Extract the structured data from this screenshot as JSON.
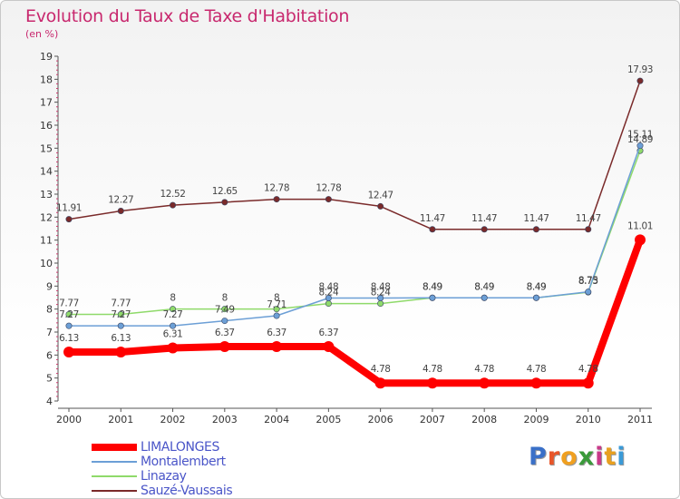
{
  "header": {
    "title": "Evolution du Taux de Taxe d'Habitation",
    "subtitle": "(en %)"
  },
  "logo": {
    "text": "Proxiti",
    "letter_colors": [
      "#3a70c8",
      "#e8562a",
      "#f0a020",
      "#3a9a3a",
      "#c83a8a",
      "#e8a020",
      "#3a9ad8"
    ]
  },
  "chart_data": {
    "type": "line",
    "x": [
      "2000",
      "2001",
      "2002",
      "2003",
      "2004",
      "2005",
      "2006",
      "2007",
      "2008",
      "2009",
      "2010",
      "2011"
    ],
    "ylim": [
      4,
      19
    ],
    "yticks": [
      4,
      5,
      6,
      7,
      8,
      9,
      10,
      11,
      12,
      13,
      14,
      15,
      16,
      17,
      18,
      19
    ],
    "grid": false,
    "legend_position": "bottom-left",
    "series": [
      {
        "name": "LIMALONGES",
        "color": "#ff0000",
        "width": 8,
        "values": [
          6.13,
          6.13,
          6.31,
          6.37,
          6.37,
          6.37,
          4.78,
          4.78,
          4.78,
          4.78,
          4.78,
          11.01
        ],
        "labels": [
          "6.13",
          "6.13",
          "6.31",
          "6.37",
          "6.37",
          "6.37",
          "4.78",
          "4.78",
          "4.78",
          "4.78",
          "4.78",
          "11.01"
        ]
      },
      {
        "name": "Montalembert",
        "color": "#6c9fd6",
        "width": 1.5,
        "values": [
          7.27,
          7.27,
          7.27,
          7.49,
          7.71,
          8.48,
          8.48,
          8.49,
          8.49,
          8.49,
          8.75,
          15.11
        ],
        "labels": [
          "7.27",
          "7.27",
          "7.27",
          "7.49",
          "7.71",
          "8.48",
          "8.48",
          "8.49",
          "8.49",
          "8.49",
          "8.75",
          "15.11"
        ]
      },
      {
        "name": "Linazay",
        "color": "#8fda6a",
        "width": 1.5,
        "values": [
          7.77,
          7.77,
          8,
          8,
          8,
          8.24,
          8.24,
          8.49,
          8.49,
          8.49,
          8.73,
          14.89
        ],
        "labels": [
          "7.77",
          "7.77",
          "8",
          "8",
          "8",
          "8.24",
          "8.24",
          "8.49",
          "8.49",
          "8.49",
          "8.73",
          "14.89"
        ]
      },
      {
        "name": "Sauzé-Vaussais",
        "color": "#7a2a2a",
        "width": 1.5,
        "values": [
          11.91,
          12.27,
          12.52,
          12.65,
          12.78,
          12.78,
          12.47,
          11.47,
          11.47,
          11.47,
          11.47,
          17.93
        ],
        "labels": [
          "11.91",
          "12.27",
          "12.52",
          "12.65",
          "12.78",
          "12.78",
          "12.47",
          "11.47",
          "11.47",
          "11.47",
          "11.47",
          "17.93"
        ]
      }
    ]
  }
}
